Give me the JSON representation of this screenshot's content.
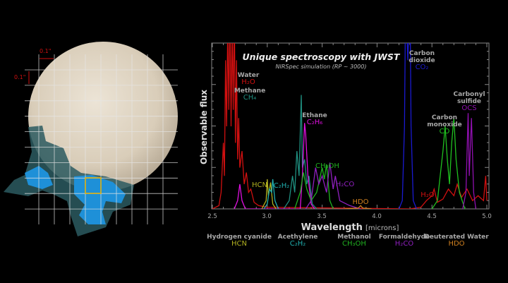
{
  "europa_panel": {
    "scale_h": "0.1\"",
    "scale_v": "0.1\"",
    "colors": {
      "planet": "#dcd2c2",
      "grid": "#e6e6e6",
      "plume_core": "#1e90d8",
      "plume_halo": "#2c5a60",
      "highlight": "#f0b400",
      "scale": "#d01010"
    }
  },
  "chart_data": {
    "type": "line",
    "title": "Unique spectroscopy with JWST",
    "subtitle": "NIRSpec simulation (RP ~ 3000)",
    "xlabel": "Wavelength",
    "xlabel_unit": "[microns]",
    "ylabel": "Observable flux",
    "xlim": [
      2.5,
      5.0
    ],
    "ylim": [
      0,
      1
    ],
    "xticks": [
      "2.5",
      "3.0",
      "3.5",
      "4.0",
      "4.5",
      "5.0"
    ],
    "grid": false,
    "series": [
      {
        "name": "Water",
        "formula": "H₂O",
        "color": "#d01010",
        "points": [
          [
            2.5,
            0
          ],
          [
            2.56,
            0.02
          ],
          [
            2.58,
            0.1
          ],
          [
            2.6,
            0.4
          ],
          [
            2.61,
            0.2
          ],
          [
            2.62,
            0.9
          ],
          [
            2.63,
            0.5
          ],
          [
            2.64,
            1.1
          ],
          [
            2.65,
            0.6
          ],
          [
            2.66,
            1.2
          ],
          [
            2.67,
            0.5
          ],
          [
            2.68,
            1.1
          ],
          [
            2.69,
            0.6
          ],
          [
            2.7,
            1.2
          ],
          [
            2.71,
            0.4
          ],
          [
            2.72,
            0.9
          ],
          [
            2.73,
            0.3
          ],
          [
            2.74,
            0.55
          ],
          [
            2.75,
            0.25
          ],
          [
            2.77,
            0.35
          ],
          [
            2.79,
            0.15
          ],
          [
            2.81,
            0.22
          ],
          [
            2.83,
            0.1
          ],
          [
            2.85,
            0.12
          ],
          [
            2.88,
            0.04
          ],
          [
            2.92,
            0.02
          ],
          [
            3.0,
            0.01
          ],
          [
            4.3,
            0.0
          ],
          [
            4.4,
            0.01
          ],
          [
            4.45,
            0.05
          ],
          [
            4.5,
            0.08
          ],
          [
            4.52,
            0.12
          ],
          [
            4.55,
            0.04
          ],
          [
            4.6,
            0.06
          ],
          [
            4.65,
            0.12
          ],
          [
            4.7,
            0.08
          ],
          [
            4.73,
            0.15
          ],
          [
            4.77,
            0.07
          ],
          [
            4.82,
            0.12
          ],
          [
            4.87,
            0.05
          ],
          [
            4.92,
            0.08
          ],
          [
            4.97,
            0.05
          ],
          [
            4.99,
            0.2
          ],
          [
            5.0,
            0.05
          ]
        ],
        "label_pos": "inline"
      },
      {
        "name": "Carbon dioxide",
        "formula": "CO₂",
        "color": "#1a1ad0",
        "points": [
          [
            4.2,
            0
          ],
          [
            4.23,
            0.05
          ],
          [
            4.25,
            0.5
          ],
          [
            4.26,
            1.3
          ],
          [
            4.28,
            0.9
          ],
          [
            4.3,
            1.3
          ],
          [
            4.31,
            0.5
          ],
          [
            4.33,
            0.05
          ],
          [
            4.36,
            0
          ]
        ]
      },
      {
        "name": "Methane",
        "formula": "CH₄",
        "color": "#1f8f80",
        "points": [
          [
            3.15,
            0
          ],
          [
            3.2,
            0.05
          ],
          [
            3.23,
            0.2
          ],
          [
            3.25,
            0.1
          ],
          [
            3.27,
            0.35
          ],
          [
            3.29,
            0.2
          ],
          [
            3.31,
            0.69
          ],
          [
            3.32,
            0.25
          ],
          [
            3.34,
            0.3
          ],
          [
            3.36,
            0.15
          ],
          [
            3.38,
            0.2
          ],
          [
            3.41,
            0.03
          ],
          [
            3.45,
            0
          ]
        ]
      },
      {
        "name": "Ethane",
        "formula": "C₂H₆",
        "color": "#e010e0",
        "points": [
          [
            2.7,
            0
          ],
          [
            2.73,
            0.05
          ],
          [
            2.75,
            0.15
          ],
          [
            2.77,
            0.05
          ],
          [
            2.8,
            0
          ],
          [
            3.3,
            0
          ],
          [
            3.32,
            0.2
          ],
          [
            3.34,
            0.52
          ],
          [
            3.35,
            0.45
          ],
          [
            3.37,
            0.2
          ],
          [
            3.4,
            0.03
          ],
          [
            3.43,
            0
          ]
        ]
      },
      {
        "name": "Methanol",
        "formula": "CH₃OH",
        "color": "#20b020",
        "points": [
          [
            3.25,
            0
          ],
          [
            3.3,
            0.1
          ],
          [
            3.33,
            0.22
          ],
          [
            3.36,
            0.12
          ],
          [
            3.4,
            0.05
          ],
          [
            3.45,
            0.1
          ],
          [
            3.5,
            0.25
          ],
          [
            3.52,
            0.18
          ],
          [
            3.54,
            0.27
          ],
          [
            3.57,
            0.05
          ],
          [
            3.6,
            0
          ]
        ]
      },
      {
        "name": "Formaldehyde",
        "formula": "H₂CO",
        "color": "#9020c0",
        "points": [
          [
            3.35,
            0
          ],
          [
            3.4,
            0.05
          ],
          [
            3.44,
            0.25
          ],
          [
            3.47,
            0.15
          ],
          [
            3.5,
            0.2
          ],
          [
            3.54,
            0.1
          ],
          [
            3.57,
            0.28
          ],
          [
            3.6,
            0.12
          ],
          [
            3.62,
            0.2
          ],
          [
            3.66,
            0.05
          ],
          [
            3.75,
            0.02
          ],
          [
            3.85,
            0
          ]
        ]
      },
      {
        "name": "Hydrogen cyanide",
        "formula": "HCN",
        "color": "#b0b020",
        "points": [
          [
            2.95,
            0
          ],
          [
            2.99,
            0.05
          ],
          [
            3.0,
            0.18
          ],
          [
            3.01,
            0.08
          ],
          [
            3.03,
            0.16
          ],
          [
            3.05,
            0.03
          ],
          [
            3.08,
            0
          ]
        ]
      },
      {
        "name": "Acethylene",
        "formula": "C₂H₂",
        "color": "#20b0b0",
        "points": [
          [
            2.97,
            0
          ],
          [
            3.0,
            0.03
          ],
          [
            3.02,
            0.12
          ],
          [
            3.04,
            0.1
          ],
          [
            3.05,
            0.18
          ],
          [
            3.07,
            0.05
          ],
          [
            3.1,
            0
          ]
        ]
      },
      {
        "name": "Deuterated Water",
        "formula": "HDO",
        "color": "#d08020",
        "points": [
          [
            3.7,
            0
          ],
          [
            3.83,
            0.005
          ],
          [
            3.85,
            0.02
          ],
          [
            3.87,
            0.005
          ],
          [
            3.95,
            0
          ]
        ]
      },
      {
        "name": "Carbon monoxide",
        "formula": "CO",
        "color": "#20c020",
        "points": [
          [
            4.5,
            0
          ],
          [
            4.55,
            0.05
          ],
          [
            4.6,
            0.35
          ],
          [
            4.62,
            0.5
          ],
          [
            4.64,
            0.3
          ],
          [
            4.66,
            0.15
          ],
          [
            4.68,
            0.4
          ],
          [
            4.7,
            0.55
          ],
          [
            4.72,
            0.3
          ],
          [
            4.75,
            0.1
          ],
          [
            4.8,
            0
          ]
        ]
      },
      {
        "name": "Carbonyl sulfide",
        "formula": "OCS",
        "color": "#9010b0",
        "points": [
          [
            4.78,
            0
          ],
          [
            4.81,
            0.1
          ],
          [
            4.83,
            0.58
          ],
          [
            4.84,
            0.2
          ],
          [
            4.86,
            0.55
          ],
          [
            4.88,
            0.1
          ],
          [
            4.9,
            0
          ]
        ]
      }
    ],
    "annotations": [
      {
        "text": "H₂O",
        "color": "#d01010",
        "near_x": 4.45
      }
    ],
    "legend": [
      {
        "name": "Hydrogen cyanide",
        "formula": "HCN",
        "color": "#b0b020"
      },
      {
        "name": "Acethylene",
        "formula": "C₂H₂",
        "color": "#20b0b0"
      },
      {
        "name": "Methanol",
        "formula": "CH₃OH",
        "color": "#20b020"
      },
      {
        "name": "Formaldehyde",
        "formula": "H₂CO",
        "color": "#9020c0"
      },
      {
        "name": "Deuterated Water",
        "formula": "HDO",
        "color": "#d08020"
      }
    ],
    "legend_placement": "bottom"
  }
}
